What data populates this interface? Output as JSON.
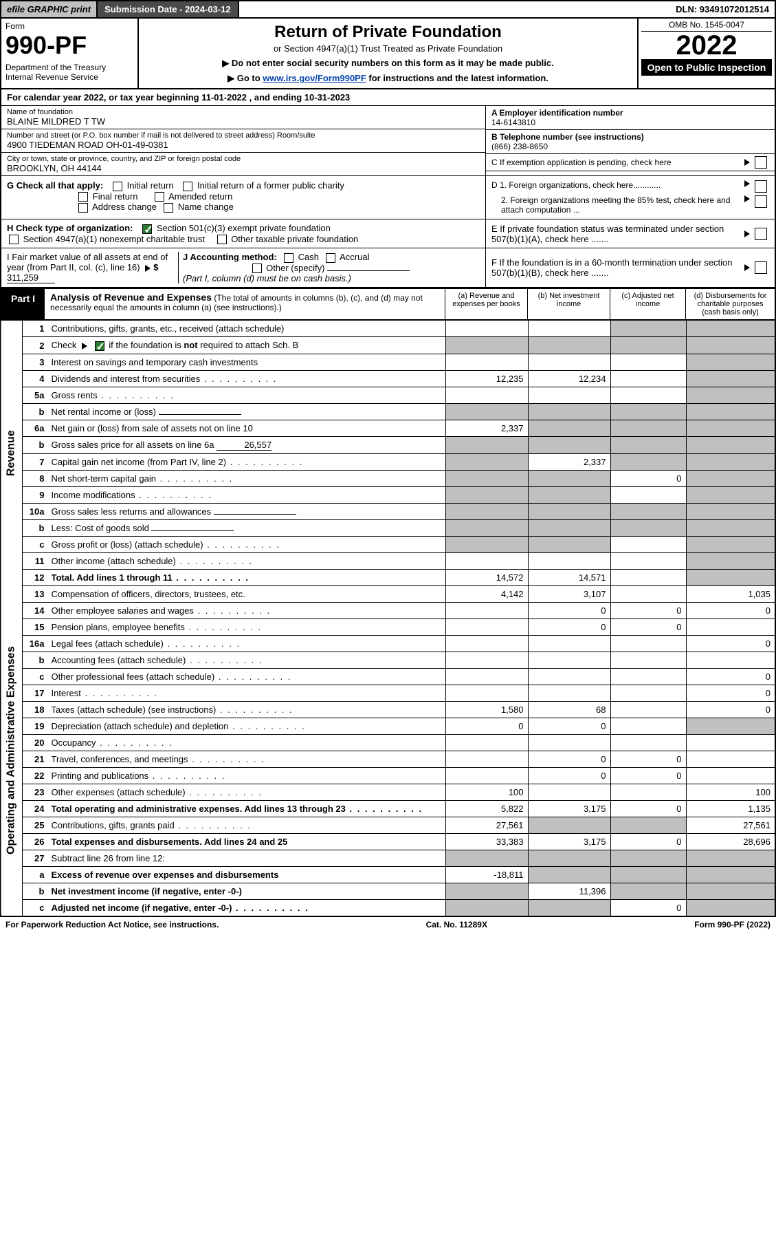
{
  "topbar": {
    "efile": "efile GRAPHIC print",
    "submission": "Submission Date - 2024-03-12",
    "dln": "DLN: 93491072012514"
  },
  "header": {
    "form_label": "Form",
    "form_num": "990-PF",
    "dept": "Department of the Treasury\nInternal Revenue Service",
    "title": "Return of Private Foundation",
    "subtitle": "or Section 4947(a)(1) Trust Treated as Private Foundation",
    "note1": "▶ Do not enter social security numbers on this form as it may be made public.",
    "note2_pre": "▶ Go to ",
    "note2_link": "www.irs.gov/Form990PF",
    "note2_post": " for instructions and the latest information.",
    "omb": "OMB No. 1545-0047",
    "year": "2022",
    "open": "Open to Public Inspection"
  },
  "calyear": "For calendar year 2022, or tax year beginning 11-01-2022          , and ending 10-31-2023",
  "entity": {
    "name_lbl": "Name of foundation",
    "name": "BLAINE MILDRED T TW",
    "addr_lbl": "Number and street (or P.O. box number if mail is not delivered to street address)       Room/suite",
    "addr": "4900 TIEDEMAN ROAD OH-01-49-0381",
    "city_lbl": "City or town, state or province, country, and ZIP or foreign postal code",
    "city": "BROOKLYN, OH  44144",
    "ein_lbl": "A Employer identification number",
    "ein": "14-6143810",
    "tel_lbl": "B Telephone number (see instructions)",
    "tel": "(866) 238-8650",
    "c_lbl": "C If exemption application is pending, check here"
  },
  "G": {
    "label": "G Check all that apply:",
    "opts": [
      "Initial return",
      "Final return",
      "Address change",
      "Initial return of a former public charity",
      "Amended return",
      "Name change"
    ]
  },
  "D": {
    "d1": "D 1. Foreign organizations, check here............",
    "d2": "2. Foreign organizations meeting the 85% test, check here and attach computation ..."
  },
  "H": {
    "label": "H Check type of organization:",
    "opt1": "Section 501(c)(3) exempt private foundation",
    "opt2": "Section 4947(a)(1) nonexempt charitable trust",
    "opt3": "Other taxable private foundation"
  },
  "E": "E  If private foundation status was terminated under section 507(b)(1)(A), check here .......",
  "I": {
    "label": "I Fair market value of all assets at end of year (from Part II, col. (c), line 16)",
    "val": "311,259"
  },
  "J": {
    "label": "J Accounting method:",
    "cash": "Cash",
    "accrual": "Accrual",
    "other": "Other (specify)",
    "note": "(Part I, column (d) must be on cash basis.)"
  },
  "F": "F  If the foundation is in a 60-month termination under section 507(b)(1)(B), check here .......",
  "part1": {
    "tab": "Part I",
    "title": "Analysis of Revenue and Expenses",
    "note": "(The total of amounts in columns (b), (c), and (d) may not necessarily equal the amounts in column (a) (see instructions).)",
    "colA": "(a)  Revenue and expenses per books",
    "colB": "(b)  Net investment income",
    "colC": "(c)  Adjusted net income",
    "colD": "(d)  Disbursements for charitable purposes (cash basis only)"
  },
  "side": {
    "rev": "Revenue",
    "exp": "Operating and Administrative Expenses"
  },
  "rows": [
    {
      "n": "1",
      "d": "Contributions, gifts, grants, etc., received (attach schedule)",
      "a": "",
      "b": "",
      "c": "s",
      "ds": "s"
    },
    {
      "n": "2",
      "d": "Check ▶ ☑ if the foundation is not required to attach Sch. B",
      "a": "s",
      "b": "s",
      "c": "s",
      "ds": "s",
      "dots": true,
      "chk": true
    },
    {
      "n": "3",
      "d": "Interest on savings and temporary cash investments",
      "a": "",
      "b": "",
      "c": "",
      "ds": "s"
    },
    {
      "n": "4",
      "d": "Dividends and interest from securities",
      "a": "12,235",
      "b": "12,234",
      "c": "",
      "ds": "s",
      "dots": true
    },
    {
      "n": "5a",
      "d": "Gross rents",
      "a": "",
      "b": "",
      "c": "",
      "ds": "s",
      "dots": true
    },
    {
      "n": "b",
      "d": "Net rental income or (loss)",
      "a": "s",
      "b": "s",
      "c": "s",
      "ds": "s",
      "inline": true
    },
    {
      "n": "6a",
      "d": "Net gain or (loss) from sale of assets not on line 10",
      "a": "2,337",
      "b": "s",
      "c": "s",
      "ds": "s"
    },
    {
      "n": "b",
      "d": "Gross sales price for all assets on line 6a",
      "a": "s",
      "b": "s",
      "c": "s",
      "ds": "s",
      "inline": true,
      "inlineval": "26,557"
    },
    {
      "n": "7",
      "d": "Capital gain net income (from Part IV, line 2)",
      "a": "s",
      "b": "2,337",
      "c": "s",
      "ds": "s",
      "dots": true
    },
    {
      "n": "8",
      "d": "Net short-term capital gain",
      "a": "s",
      "b": "s",
      "c": "0",
      "ds": "s",
      "dots": true
    },
    {
      "n": "9",
      "d": "Income modifications",
      "a": "s",
      "b": "s",
      "c": "",
      "ds": "s",
      "dots": true
    },
    {
      "n": "10a",
      "d": "Gross sales less returns and allowances",
      "a": "s",
      "b": "s",
      "c": "s",
      "ds": "s",
      "inline": true
    },
    {
      "n": "b",
      "d": "Less: Cost of goods sold",
      "a": "s",
      "b": "s",
      "c": "s",
      "ds": "s",
      "inline": true,
      "dots": true
    },
    {
      "n": "c",
      "d": "Gross profit or (loss) (attach schedule)",
      "a": "s",
      "b": "s",
      "c": "",
      "ds": "s",
      "dots": true
    },
    {
      "n": "11",
      "d": "Other income (attach schedule)",
      "a": "",
      "b": "",
      "c": "",
      "ds": "s",
      "dots": true
    },
    {
      "n": "12",
      "d": "Total. Add lines 1 through 11",
      "a": "14,572",
      "b": "14,571",
      "c": "",
      "ds": "s",
      "bold": true,
      "dots": true
    },
    {
      "n": "13",
      "d": "Compensation of officers, directors, trustees, etc.",
      "a": "4,142",
      "b": "3,107",
      "c": "",
      "ds": "1,035"
    },
    {
      "n": "14",
      "d": "Other employee salaries and wages",
      "a": "",
      "b": "0",
      "c": "0",
      "ds": "0",
      "dots": true
    },
    {
      "n": "15",
      "d": "Pension plans, employee benefits",
      "a": "",
      "b": "0",
      "c": "0",
      "ds": "",
      "dots": true
    },
    {
      "n": "16a",
      "d": "Legal fees (attach schedule)",
      "a": "",
      "b": "",
      "c": "",
      "ds": "0",
      "dots": true
    },
    {
      "n": "b",
      "d": "Accounting fees (attach schedule)",
      "a": "",
      "b": "",
      "c": "",
      "ds": "",
      "dots": true
    },
    {
      "n": "c",
      "d": "Other professional fees (attach schedule)",
      "a": "",
      "b": "",
      "c": "",
      "ds": "0",
      "dots": true
    },
    {
      "n": "17",
      "d": "Interest",
      "a": "",
      "b": "",
      "c": "",
      "ds": "0",
      "dots": true
    },
    {
      "n": "18",
      "d": "Taxes (attach schedule) (see instructions)",
      "a": "1,580",
      "b": "68",
      "c": "",
      "ds": "0",
      "dots": true
    },
    {
      "n": "19",
      "d": "Depreciation (attach schedule) and depletion",
      "a": "0",
      "b": "0",
      "c": "",
      "ds": "s",
      "dots": true
    },
    {
      "n": "20",
      "d": "Occupancy",
      "a": "",
      "b": "",
      "c": "",
      "ds": "",
      "dots": true
    },
    {
      "n": "21",
      "d": "Travel, conferences, and meetings",
      "a": "",
      "b": "0",
      "c": "0",
      "ds": "",
      "dots": true
    },
    {
      "n": "22",
      "d": "Printing and publications",
      "a": "",
      "b": "0",
      "c": "0",
      "ds": "",
      "dots": true
    },
    {
      "n": "23",
      "d": "Other expenses (attach schedule)",
      "a": "100",
      "b": "",
      "c": "",
      "ds": "100",
      "dots": true
    },
    {
      "n": "24",
      "d": "Total operating and administrative expenses. Add lines 13 through 23",
      "a": "5,822",
      "b": "3,175",
      "c": "0",
      "ds": "1,135",
      "bold": true,
      "dots": true
    },
    {
      "n": "25",
      "d": "Contributions, gifts, grants paid",
      "a": "27,561",
      "b": "s",
      "c": "s",
      "ds": "27,561",
      "dots": true
    },
    {
      "n": "26",
      "d": "Total expenses and disbursements. Add lines 24 and 25",
      "a": "33,383",
      "b": "3,175",
      "c": "0",
      "ds": "28,696",
      "bold": true
    },
    {
      "n": "27",
      "d": "Subtract line 26 from line 12:",
      "a": "s",
      "b": "s",
      "c": "s",
      "ds": "s"
    },
    {
      "n": "a",
      "d": "Excess of revenue over expenses and disbursements",
      "a": "-18,811",
      "b": "s",
      "c": "s",
      "ds": "s",
      "bold": true
    },
    {
      "n": "b",
      "d": "Net investment income (if negative, enter -0-)",
      "a": "s",
      "b": "11,396",
      "c": "s",
      "ds": "s",
      "bold": true
    },
    {
      "n": "c",
      "d": "Adjusted net income (if negative, enter -0-)",
      "a": "s",
      "b": "s",
      "c": "0",
      "ds": "s",
      "bold": true,
      "dots": true
    }
  ],
  "footer": {
    "left": "For Paperwork Reduction Act Notice, see instructions.",
    "mid": "Cat. No. 11289X",
    "right": "Form 990-PF (2022)"
  },
  "colors": {
    "shade": "#c0c0c0",
    "topbar_dark": "#4a4a4a",
    "check_green": "#2e7d32",
    "link": "#0645ad"
  }
}
